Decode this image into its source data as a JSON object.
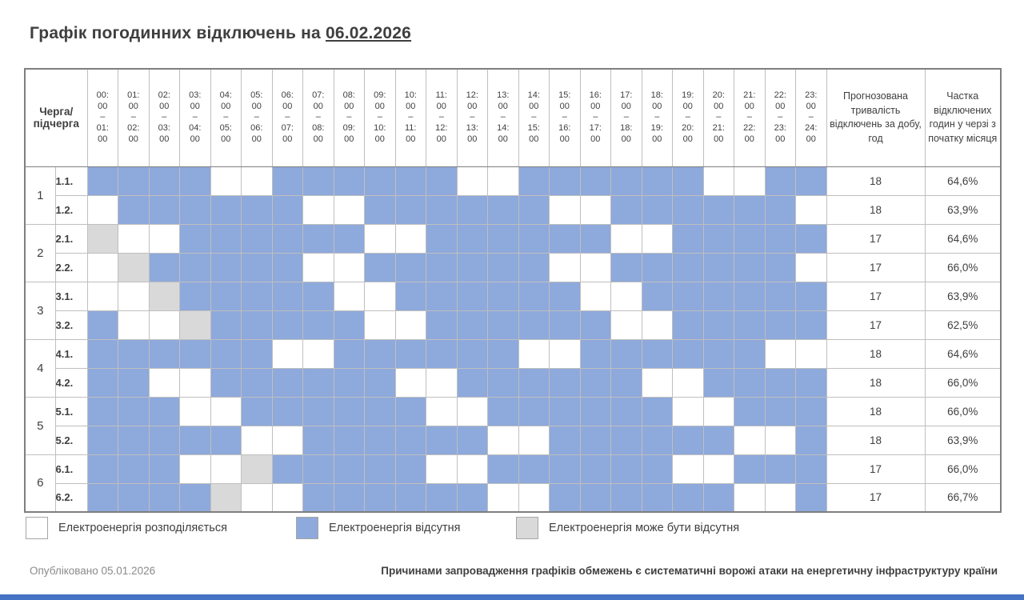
{
  "title": {
    "prefix": "Графік погодинних відключень на ",
    "date": "06.02.2026"
  },
  "colors": {
    "outage": "#8EA9DB",
    "maybe": "#D9D9D9",
    "available": "#FFFFFF",
    "grid_line": "#BFBFBF",
    "bottom_bar": "#4472C4"
  },
  "table": {
    "corner_header": "Черга/підчерга",
    "hours": [
      [
        "00:00",
        "01:00"
      ],
      [
        "01:00",
        "02:00"
      ],
      [
        "02:00",
        "03:00"
      ],
      [
        "03:00",
        "04:00"
      ],
      [
        "04:00",
        "05:00"
      ],
      [
        "05:00",
        "06:00"
      ],
      [
        "06:00",
        "07:00"
      ],
      [
        "07:00",
        "08:00"
      ],
      [
        "08:00",
        "09:00"
      ],
      [
        "09:00",
        "10:00"
      ],
      [
        "10:00",
        "11:00"
      ],
      [
        "11:00",
        "12:00"
      ],
      [
        "12:00",
        "13:00"
      ],
      [
        "13:00",
        "14:00"
      ],
      [
        "14:00",
        "15:00"
      ],
      [
        "15:00",
        "16:00"
      ],
      [
        "16:00",
        "17:00"
      ],
      [
        "17:00",
        "18:00"
      ],
      [
        "18:00",
        "19:00"
      ],
      [
        "19:00",
        "20:00"
      ],
      [
        "20:00",
        "21:00"
      ],
      [
        "21:00",
        "22:00"
      ],
      [
        "22:00",
        "23:00"
      ],
      [
        "23:00",
        "24:00"
      ]
    ],
    "col_duration_header": "Прогнозована тривалість відключень за добу, год",
    "col_share_header": "Частка відключених годин у черзі з початку місяця",
    "cell_states_legend": {
      "W": "available",
      "B": "outage",
      "G": "maybe"
    },
    "queues": [
      {
        "number": "1",
        "rows": [
          {
            "label": "1.1.",
            "cells": "BBBBWWBBBBBBWWBBBBBBWWBB",
            "duration": "18",
            "share": "64,6%"
          },
          {
            "label": "1.2.",
            "cells": "WBBBBBBWWBBBBBBWWBBBBBBW",
            "duration": "18",
            "share": "63,9%"
          }
        ]
      },
      {
        "number": "2",
        "rows": [
          {
            "label": "2.1.",
            "cells": "GWWBBBBBBWWBBBBBBWWBBBBB",
            "duration": "17",
            "share": "64,6%"
          },
          {
            "label": "2.2.",
            "cells": "WGBBBBBWWBBBBBBWWBBBBBBW",
            "duration": "17",
            "share": "66,0%"
          }
        ]
      },
      {
        "number": "3",
        "rows": [
          {
            "label": "3.1.",
            "cells": "WWGBBBBBWWBBBBBBWWBBBBBB",
            "duration": "17",
            "share": "63,9%"
          },
          {
            "label": "3.2.",
            "cells": "BWWGBBBBBWWBBBBBBWWBBBBB",
            "duration": "17",
            "share": "62,5%"
          }
        ]
      },
      {
        "number": "4",
        "rows": [
          {
            "label": "4.1.",
            "cells": "BBBBBBWWBBBBBBWWBBBBBBWW",
            "duration": "18",
            "share": "64,6%"
          },
          {
            "label": "4.2.",
            "cells": "BBWWBBBBBBWWBBBBBBWWBBBB",
            "duration": "18",
            "share": "66,0%"
          }
        ]
      },
      {
        "number": "5",
        "rows": [
          {
            "label": "5.1.",
            "cells": "BBBWWBBBBBBWWBBBBBBWWBBB",
            "duration": "18",
            "share": "66,0%"
          },
          {
            "label": "5.2.",
            "cells": "BBBBBWWBBBBBBWWBBBBBBWWB",
            "duration": "18",
            "share": "63,9%"
          }
        ]
      },
      {
        "number": "6",
        "rows": [
          {
            "label": "6.1.",
            "cells": "BBBWWGBBBBBWWBBBBBBWWBBB",
            "duration": "17",
            "share": "66,0%"
          },
          {
            "label": "6.2.",
            "cells": "BBBBGWWBBBBBBWWBBBBBBWWB",
            "duration": "17",
            "share": "66,7%"
          }
        ]
      }
    ]
  },
  "legend": [
    {
      "key": "W",
      "label": "Електроенергія розподіляється"
    },
    {
      "key": "B",
      "label": "Електроенергія відсутня"
    },
    {
      "key": "G",
      "label": "Електроенергія може бути відсутня"
    }
  ],
  "footer": {
    "published": "Опубліковано 05.01.2026",
    "note": "Причинами запровадження графіків обмежень є систематичні ворожі атаки на енергетичну інфраструктуру країни"
  }
}
